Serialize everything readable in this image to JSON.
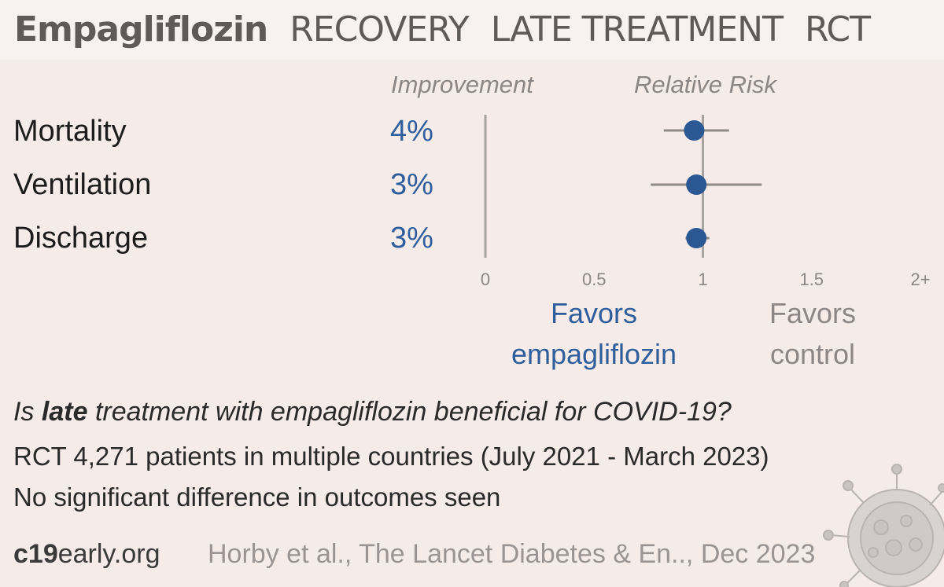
{
  "title": {
    "drug": "Empagliflozin",
    "trial": "RECOVERY",
    "stage": "LATE TREATMENT",
    "design": "RCT"
  },
  "headers": {
    "improvement": "Improvement",
    "relative_risk": "Relative Risk"
  },
  "chart_data": {
    "type": "scatter",
    "title": "",
    "x_axis": {
      "ticks": [
        "0",
        "0.5",
        "1",
        "1.5",
        "2+"
      ],
      "range": [
        0,
        2
      ]
    },
    "reference_line": 1,
    "outcomes": [
      {
        "name": "Mortality",
        "improvement": "4%",
        "rr": 0.96,
        "ci_low": 0.82,
        "ci_high": 1.12
      },
      {
        "name": "Ventilation",
        "improvement": "3%",
        "rr": 0.97,
        "ci_low": 0.76,
        "ci_high": 1.27
      },
      {
        "name": "Discharge",
        "improvement": "3%",
        "rr": 0.97,
        "ci_low": 0.92,
        "ci_high": 1.03
      }
    ],
    "favors_left": [
      "Favors",
      "empagliflozin"
    ],
    "favors_right": [
      "Favors",
      "control"
    ],
    "colors": {
      "point": "#2b5892",
      "ci": "#8f8b89",
      "axis": "#a7a3a1"
    }
  },
  "question": {
    "pre": "Is ",
    "bold": "late",
    "post": " treatment with empagliflozin beneficial for COVID-19?"
  },
  "study_line": "RCT 4,271 patients in multiple countries (July 2021 - March 2023)",
  "result_line": "No significant difference in outcomes seen",
  "footer": {
    "brand_bold": "c19",
    "brand_rest": "early.org",
    "citation": "Horby et al., The Lancet Diabetes & En.., Dec 2023"
  }
}
